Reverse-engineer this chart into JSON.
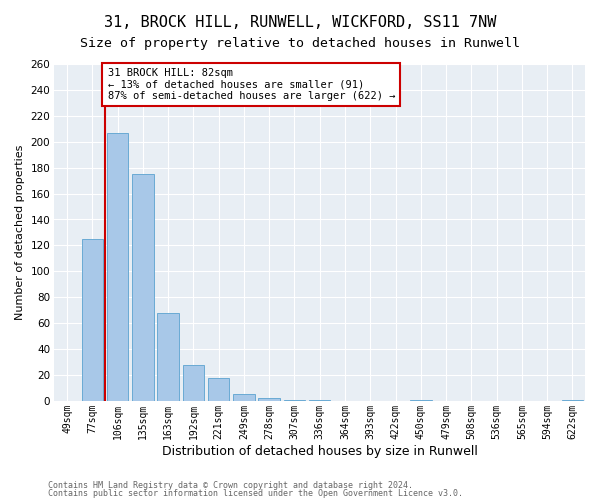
{
  "title": "31, BROCK HILL, RUNWELL, WICKFORD, SS11 7NW",
  "subtitle": "Size of property relative to detached houses in Runwell",
  "xlabel": "Distribution of detached houses by size in Runwell",
  "ylabel": "Number of detached properties",
  "footnote1": "Contains HM Land Registry data © Crown copyright and database right 2024.",
  "footnote2": "Contains public sector information licensed under the Open Government Licence v3.0.",
  "bar_labels": [
    "49sqm",
    "77sqm",
    "106sqm",
    "135sqm",
    "163sqm",
    "192sqm",
    "221sqm",
    "249sqm",
    "278sqm",
    "307sqm",
    "336sqm",
    "364sqm",
    "393sqm",
    "422sqm",
    "450sqm",
    "479sqm",
    "508sqm",
    "536sqm",
    "565sqm",
    "594sqm",
    "622sqm"
  ],
  "bar_values": [
    0,
    125,
    207,
    175,
    68,
    28,
    18,
    5,
    2,
    1,
    1,
    0,
    0,
    0,
    1,
    0,
    0,
    0,
    0,
    0,
    1
  ],
  "bar_color": "#a8c8e8",
  "bar_edge_color": "#6aaad4",
  "highlight_color": "#cc0000",
  "annotation_text": "31 BROCK HILL: 82sqm\n← 13% of detached houses are smaller (91)\n87% of semi-detached houses are larger (622) →",
  "annotation_box_color": "#ffffff",
  "annotation_box_edge": "#cc0000",
  "ylim": [
    0,
    260
  ],
  "yticks": [
    0,
    20,
    40,
    60,
    80,
    100,
    120,
    140,
    160,
    180,
    200,
    220,
    240,
    260
  ],
  "background_color": "#ffffff",
  "plot_bg_color": "#e8eef4",
  "grid_color": "#ffffff",
  "title_fontsize": 11,
  "subtitle_fontsize": 9.5,
  "ylabel_fontsize": 8,
  "xlabel_fontsize": 9
}
